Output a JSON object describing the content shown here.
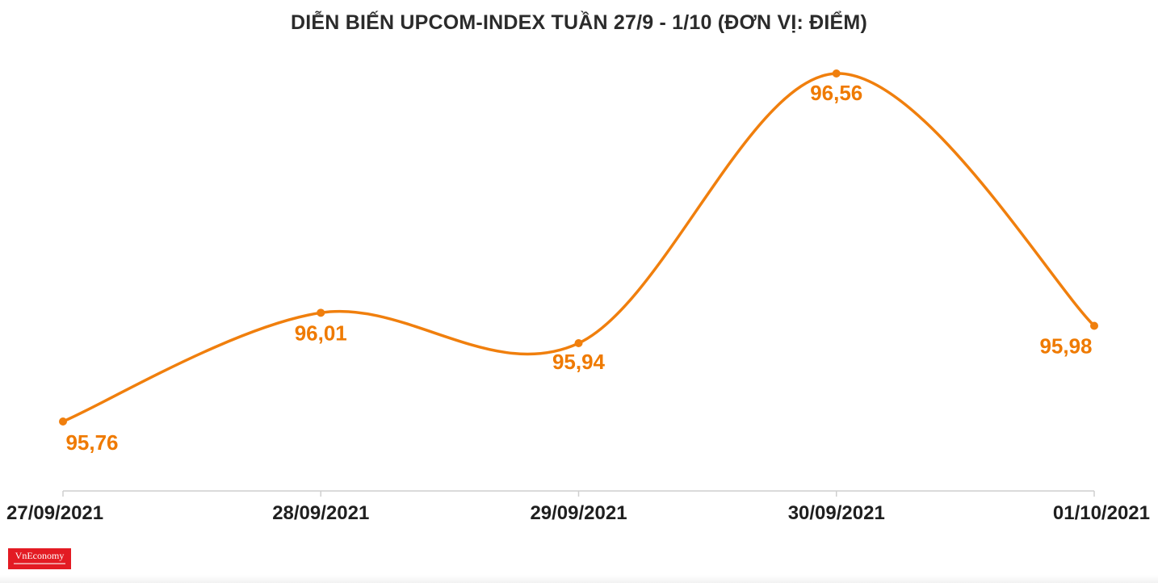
{
  "chart_data": {
    "type": "line",
    "title": "DIỄN BIẾN UPCOM-INDEX TUẦN 27/9 - 1/10 (ĐƠN VỊ: ĐIỂM)",
    "xlabel": "",
    "ylabel": "",
    "categories": [
      "27/09/2021",
      "28/09/2021",
      "29/09/2021",
      "30/09/2021",
      "01/10/2021"
    ],
    "series": [
      {
        "values": [
          95.76,
          96.01,
          95.94,
          96.56,
          95.98
        ],
        "labels": [
          "95,76",
          "96,01",
          "95,94",
          "96,56",
          "95,98"
        ]
      }
    ],
    "ylim": [
      95.6,
      96.6
    ],
    "smooth": true,
    "grid": false,
    "legend": "none",
    "colors": {
      "line": "#f07f0d",
      "label": "#ef7a00",
      "axis": "#cfcfcf",
      "tick_text": "#1f1f1f",
      "title": "#2b2b2b"
    }
  },
  "logo": {
    "text": "VnEconomy",
    "bg": "#e31b23"
  }
}
